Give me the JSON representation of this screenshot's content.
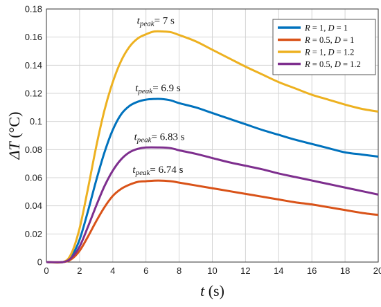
{
  "chart_data": {
    "type": "line",
    "xlabel": "t (s)",
    "ylabel": "ΔT (°C)",
    "xlim": [
      0,
      20
    ],
    "ylim": [
      0,
      0.18
    ],
    "x_ticks": [
      "0",
      "2",
      "4",
      "6",
      "8",
      "10",
      "12",
      "14",
      "16",
      "18",
      "20"
    ],
    "y_ticks": [
      "0",
      "0.02",
      "0.04",
      "0.06",
      "0.08",
      "0.1",
      "0.12",
      "0.14",
      "0.16",
      "0.18"
    ],
    "grid": true,
    "legend_position": "top-right",
    "series": [
      {
        "name": "R = 1, D = 1",
        "color": "#0072BD",
        "x": [
          0,
          1,
          1.5,
          2,
          2.5,
          3,
          3.5,
          4,
          4.5,
          5,
          5.5,
          6,
          6.5,
          6.9,
          7.5,
          8,
          9,
          10,
          11,
          12,
          13,
          14,
          15,
          16,
          17,
          18,
          19,
          20
        ],
        "y": [
          0,
          0,
          0.004,
          0.016,
          0.036,
          0.058,
          0.078,
          0.094,
          0.105,
          0.111,
          0.114,
          0.1155,
          0.116,
          0.116,
          0.115,
          0.113,
          0.11,
          0.106,
          0.102,
          0.098,
          0.094,
          0.0905,
          0.087,
          0.084,
          0.081,
          0.078,
          0.0765,
          0.075
        ]
      },
      {
        "name": "R = 0.5, D = 1",
        "color": "#D95319",
        "x": [
          0,
          1,
          1.5,
          2,
          2.5,
          3,
          3.5,
          4,
          4.5,
          5,
          5.5,
          6,
          6.74,
          7.5,
          8,
          9,
          10,
          11,
          12,
          13,
          14,
          15,
          16,
          17,
          18,
          19,
          20
        ],
        "y": [
          0,
          0,
          0.002,
          0.008,
          0.018,
          0.029,
          0.039,
          0.047,
          0.052,
          0.055,
          0.057,
          0.0575,
          0.058,
          0.0575,
          0.0565,
          0.0545,
          0.0525,
          0.0505,
          0.0485,
          0.0465,
          0.0445,
          0.0425,
          0.041,
          0.039,
          0.037,
          0.035,
          0.0335
        ]
      },
      {
        "name": "R = 1, D = 1.2",
        "color": "#EDB120",
        "x": [
          0,
          1,
          1.5,
          2,
          2.5,
          3,
          3.5,
          4,
          4.5,
          5,
          5.5,
          6,
          6.5,
          7,
          7.5,
          8,
          9,
          10,
          11,
          12,
          13,
          14,
          15,
          16,
          17,
          18,
          19,
          20
        ],
        "y": [
          0,
          0,
          0.006,
          0.024,
          0.052,
          0.082,
          0.108,
          0.128,
          0.143,
          0.153,
          0.159,
          0.162,
          0.164,
          0.164,
          0.1635,
          0.1615,
          0.157,
          0.151,
          0.145,
          0.139,
          0.1335,
          0.128,
          0.1235,
          0.119,
          0.1155,
          0.112,
          0.109,
          0.107
        ]
      },
      {
        "name": "R = 0.5, D = 1.2",
        "color": "#7E2F8E",
        "x": [
          0,
          1,
          1.5,
          2,
          2.5,
          3,
          3.5,
          4,
          4.5,
          5,
          5.5,
          6,
          6.83,
          7.5,
          8,
          9,
          10,
          11,
          12,
          13,
          14,
          15,
          16,
          17,
          18,
          19,
          20
        ],
        "y": [
          0,
          0,
          0.003,
          0.011,
          0.025,
          0.04,
          0.054,
          0.065,
          0.073,
          0.078,
          0.0805,
          0.0815,
          0.0815,
          0.081,
          0.0795,
          0.077,
          0.074,
          0.071,
          0.0685,
          0.066,
          0.063,
          0.0605,
          0.058,
          0.0555,
          0.053,
          0.0505,
          0.048
        ]
      }
    ],
    "annotations": [
      {
        "main": "t",
        "sub": "peak",
        "text": "= 7 s",
        "x": 7,
        "y": 0.164
      },
      {
        "main": "t",
        "sub": "peak",
        "text": "= 6.9 s",
        "x": 6.9,
        "y": 0.116
      },
      {
        "main": "t",
        "sub": "peak",
        "text": "= 6.83 s",
        "x": 6.83,
        "y": 0.0815
      },
      {
        "main": "t",
        "sub": "peak",
        "text": "= 6.74 s",
        "x": 6.74,
        "y": 0.058
      }
    ]
  }
}
